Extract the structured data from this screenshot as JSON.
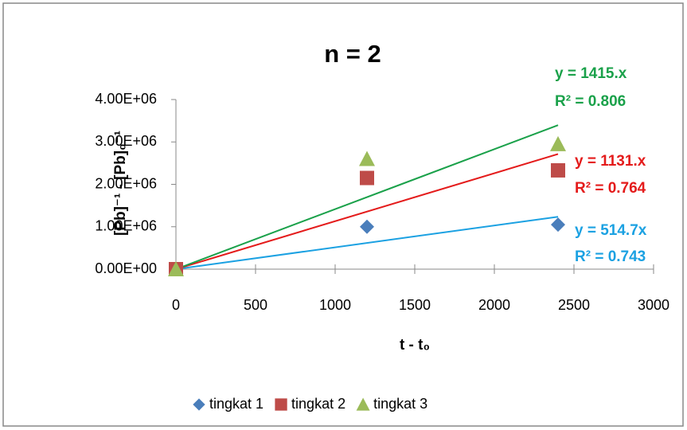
{
  "chart_data": {
    "type": "scatter",
    "title": "n = 2",
    "x_label": "t - t₀",
    "y_label": "[Pb]⁻¹ -  [Pb]₀⁻¹",
    "x": [
      0,
      1200,
      2400
    ],
    "series": [
      {
        "name": "tingkat 1",
        "color": "#4a7ebb",
        "marker": "diamond",
        "values": [
          0,
          1000000,
          1050000
        ],
        "trendline": {
          "color": "#1ba1e2",
          "slope": {
            "value": 514.7,
            "label": "y = 514.7x"
          },
          "r2": {
            "value": 0.743,
            "label": "R² = 0.743"
          }
        }
      },
      {
        "name": "tingkat 2",
        "color": "#be4b48",
        "marker": "square",
        "values": [
          0,
          2150000,
          2330000
        ],
        "trendline": {
          "color": "#e41b1b",
          "slope": {
            "value": 1131,
            "label": "y = 1131.x"
          },
          "r2": {
            "value": 0.764,
            "label": "R² = 0.764"
          }
        }
      },
      {
        "name": "tingkat 3",
        "color": "#9bbb59",
        "marker": "triangle",
        "values": [
          0,
          2600000,
          2950000
        ],
        "trendline": {
          "color": "#1aa14a",
          "slope": {
            "value": 1415,
            "label": "y = 1415.x"
          },
          "r2": {
            "value": 0.806,
            "label": "R² = 0.806"
          }
        }
      }
    ],
    "xlim": [
      0,
      3000
    ],
    "xticks": [
      0,
      500,
      1000,
      1500,
      2000,
      2500,
      3000
    ],
    "ylim": [
      0,
      4000000
    ],
    "yticks": [
      {
        "value": 0,
        "label": "0.00E+00"
      },
      {
        "value": 1000000,
        "label": "1.00E+06"
      },
      {
        "value": 2000000,
        "label": "2.00E+06"
      },
      {
        "value": 3000000,
        "label": "3.00E+06"
      },
      {
        "value": 4000000,
        "label": "4.00E+06"
      }
    ],
    "legend": "bottom",
    "grid": false
  }
}
